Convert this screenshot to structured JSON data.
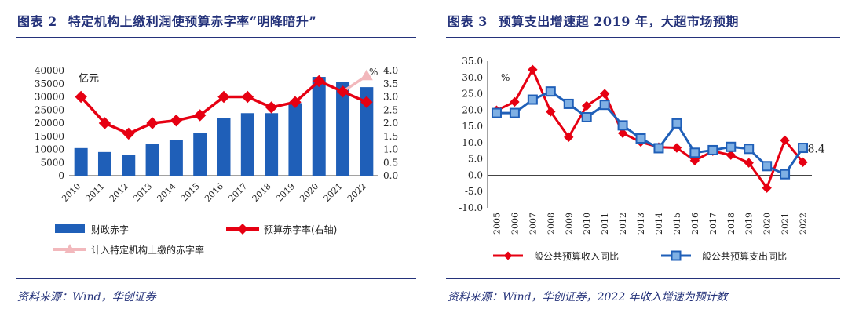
{
  "left": {
    "fig_no": "图表 2",
    "title": "特定机构上缴利润使预算赤字率“明降暗升”",
    "source": "资料来源：Wind，华创证券",
    "chart_data": {
      "type": "bar+line",
      "categories": [
        "2010",
        "2011",
        "2012",
        "2013",
        "2014",
        "2015",
        "2016",
        "2017",
        "2018",
        "2019",
        "2020",
        "2021",
        "2022"
      ],
      "y_left": {
        "label": "亿元",
        "min": 0,
        "max": 40000,
        "step": 5000
      },
      "y_right": {
        "label": "%",
        "min": 0,
        "max": 4,
        "step": 0.5
      },
      "series": [
        {
          "name": "财政赤字",
          "kind": "bar",
          "axis": "left",
          "color": "#1f5fb8",
          "values": [
            10500,
            9000,
            8000,
            12000,
            13500,
            16200,
            21800,
            23800,
            23800,
            27600,
            37600,
            35700,
            33700
          ]
        },
        {
          "name": "预算赤字率(右轴)",
          "kind": "line",
          "axis": "right",
          "color": "#e60012",
          "values": [
            3.0,
            2.0,
            1.6,
            2.0,
            2.1,
            2.3,
            3.0,
            3.0,
            2.6,
            2.8,
            3.6,
            3.2,
            2.8
          ]
        },
        {
          "name": "计入特定机构上缴的赤字率",
          "kind": "line",
          "axis": "right",
          "color": "#f2b8bc",
          "values": [
            null,
            null,
            null,
            null,
            null,
            null,
            null,
            null,
            null,
            null,
            null,
            3.2,
            3.8
          ]
        }
      ]
    }
  },
  "right": {
    "fig_no": "图表 3",
    "title": "预算支出增速超 2019 年，大超市场预期",
    "source": "资料来源：Wind，华创证券，2022 年收入增速为预计数",
    "chart_data": {
      "type": "line",
      "categories": [
        "2005",
        "2006",
        "2007",
        "2008",
        "2009",
        "2010",
        "2011",
        "2012",
        "2013",
        "2014",
        "2015",
        "2016",
        "2017",
        "2018",
        "2019",
        "2020",
        "2021",
        "2022"
      ],
      "y": {
        "label": "%",
        "min": -10,
        "max": 35,
        "step": 5
      },
      "annotation": "8.4",
      "series": [
        {
          "name": "一般公共预算收入同比",
          "color": "#e60012",
          "values": [
            19.9,
            22.5,
            32.4,
            19.5,
            11.7,
            21.3,
            25.0,
            12.9,
            10.2,
            8.6,
            8.4,
            4.5,
            7.4,
            6.2,
            3.8,
            -3.9,
            10.7,
            4.0
          ]
        },
        {
          "name": "一般公共预算支出同比",
          "color": "#1f5fb8",
          "values": [
            19.1,
            19.1,
            23.2,
            25.7,
            21.9,
            17.8,
            21.6,
            15.3,
            11.3,
            8.3,
            15.9,
            6.9,
            7.7,
            8.7,
            8.1,
            2.8,
            0.3,
            8.4
          ]
        }
      ]
    }
  }
}
